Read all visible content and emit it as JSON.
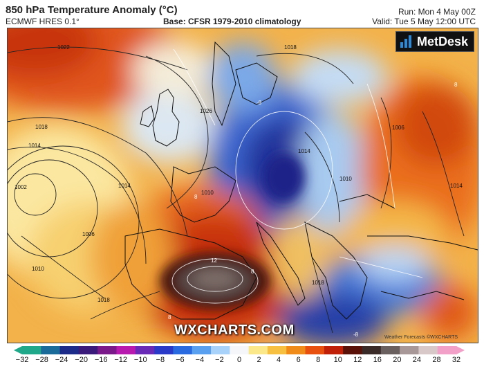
{
  "header": {
    "title": "850 hPa Temperature Anomaly (°C)",
    "model": "ECMWF HRES 0.1°",
    "base": "Base: CFSR 1979-2010 climatology",
    "run": "Run: Mon 4 May 00Z",
    "valid": "Valid: Tue 5 May 12:00 UTC"
  },
  "logo": {
    "text": "MetDesk"
  },
  "watermark": "WXCHARTS.COM",
  "credit": "Weather Forecasts ©WXCHARTS",
  "isobar_labels": [
    "1022",
    "1018",
    "1014",
    "1010",
    "1006",
    "1002",
    "1018",
    "1014",
    "1010",
    "1018",
    "1026",
    "1010",
    "1014",
    "1006",
    "1014",
    "1018"
  ],
  "anomaly_labels": [
    "12",
    "8",
    "8",
    "8",
    "8",
    "-8",
    "-8"
  ],
  "colorbar": {
    "ticks": [
      "−32",
      "−28",
      "−24",
      "−20",
      "−16",
      "−12",
      "−10",
      "−8",
      "−6",
      "−4",
      "−2",
      "0",
      "2",
      "4",
      "6",
      "8",
      "10",
      "12",
      "16",
      "20",
      "24",
      "28",
      "32"
    ],
    "colors": [
      "#1fa88a",
      "#1a6a9a",
      "#1c2a8a",
      "#3a1a7a",
      "#7a1a8a",
      "#b81ab0",
      "#6a2ab8",
      "#2a3ac8",
      "#2a6ae0",
      "#5aa0f0",
      "#a8d2fa",
      "#f4f6fa",
      "#fbe88a",
      "#f7c040",
      "#f08a18",
      "#e85010",
      "#c02008",
      "#5a1208",
      "#3a2a28",
      "#6a6060",
      "#a89898",
      "#d8c8c8",
      "#f2a0c8"
    ]
  },
  "colors": {
    "cold": "#2a4ab8",
    "warm": "#e86a10",
    "hot": "#4a1008"
  }
}
